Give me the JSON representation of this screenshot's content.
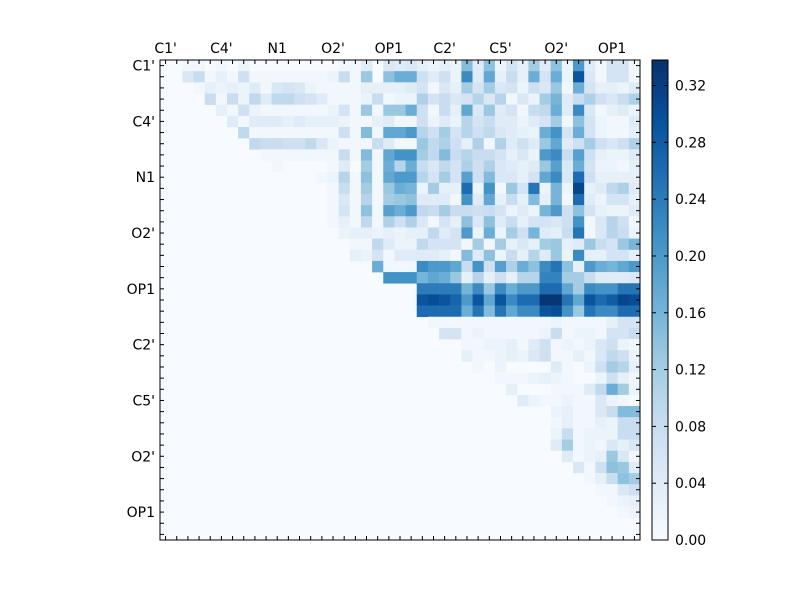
{
  "chart_data": {
    "type": "heatmap",
    "title": "",
    "xlabel": "",
    "ylabel": "",
    "n": 43,
    "x_tick_positions": [
      0,
      5,
      10,
      15,
      20,
      25,
      30,
      35,
      40
    ],
    "x_tick_labels": [
      "C1'",
      "C4'",
      "N1",
      "O2'",
      "OP1",
      "C2'",
      "C5'",
      "O2'",
      "OP1"
    ],
    "y_tick_positions": [
      0,
      5,
      10,
      15,
      20,
      25,
      30,
      35,
      40
    ],
    "y_tick_labels": [
      "C1'",
      "C4'",
      "N1",
      "O2'",
      "OP1",
      "C2'",
      "C5'",
      "O2'",
      "OP1"
    ],
    "colormap": "Blues",
    "colormap_stops": [
      "#f7fbff",
      "#deebf7",
      "#c6dbef",
      "#9ecae1",
      "#6baed6",
      "#4292c6",
      "#2171b5",
      "#08519c",
      "#08306b"
    ],
    "vmin": 0.0,
    "vmax": 0.338,
    "colorbar_ticks": [
      0.0,
      0.04,
      0.08,
      0.12,
      0.16,
      0.2,
      0.24,
      0.28,
      0.32
    ],
    "colorbar_tick_labels": [
      "0.00",
      "0.04",
      "0.08",
      "0.12",
      "0.16",
      "0.20",
      "0.24",
      "0.28",
      "0.32"
    ],
    "rows_note": "each row: values begin at column 'start'; columns outside are 0",
    "rows": [
      {
        "start": 2,
        "values": [
          0.01,
          0.01,
          0,
          0.01,
          0,
          0.02,
          0,
          0,
          0,
          0,
          0,
          0,
          0,
          0,
          0.01,
          0.01,
          0.04,
          0,
          0.05,
          0.04,
          0.05,
          0.03,
          0.02,
          0.03,
          0.02,
          0.15,
          0.04,
          0.14,
          0.02,
          0.06,
          0.03,
          0.12,
          0.04,
          0.14,
          0.02,
          0.2,
          0.04,
          0.01,
          0.06,
          0.06,
          0.01
        ]
      },
      {
        "start": 2,
        "values": [
          0.05,
          0.08,
          0.01,
          0.03,
          0.01,
          0.07,
          0.01,
          0.01,
          0.01,
          0.01,
          0.01,
          0.01,
          0.01,
          0.02,
          0.08,
          0.01,
          0.13,
          0,
          0.14,
          0.17,
          0.17,
          0.07,
          0.04,
          0.07,
          0.02,
          0.22,
          0.04,
          0.18,
          0.03,
          0.08,
          0.03,
          0.17,
          0.06,
          0.17,
          0.02,
          0.29,
          0.05,
          0.01,
          0.06,
          0.06,
          0.01
        ]
      },
      {
        "start": 3,
        "values": [
          0.01,
          0.03,
          0.02,
          0.03,
          0.02,
          0.04,
          0.01,
          0.05,
          0.06,
          0.05,
          0.02,
          0.01,
          0.01,
          0.01,
          0.01,
          0.03,
          0.03,
          0.03,
          0.03,
          0.04,
          0.06,
          0.01,
          0.05,
          0.03,
          0.12,
          0.06,
          0.12,
          0.05,
          0.06,
          0.02,
          0.07,
          0.05,
          0.13,
          0.01,
          0.17,
          0.06,
          0.03,
          0.03,
          0.02,
          0.04
        ]
      },
      {
        "start": 4,
        "values": [
          0.08,
          0.01,
          0.08,
          0.02,
          0.09,
          0.04,
          0.09,
          0.09,
          0.07,
          0.06,
          0.04,
          0.01,
          0.01,
          0.01,
          0.02,
          0.08,
          0.01,
          0.02,
          0.02,
          0.11,
          0.06,
          0.08,
          0.05,
          0.06,
          0.1,
          0.05,
          0.1,
          0.01,
          0.05,
          0.02,
          0.12,
          0.16,
          0.04,
          0.08,
          0.11,
          0.07,
          0.05,
          0.08,
          0.11
        ]
      },
      {
        "start": 5,
        "values": [
          0.03,
          0.01,
          0.07,
          0.02,
          0.01,
          0.01,
          0.01,
          0.01,
          0.01,
          0.01,
          0.02,
          0.06,
          0.01,
          0.13,
          0.01,
          0.13,
          0.13,
          0.17,
          0.07,
          0.01,
          0.08,
          0.03,
          0.18,
          0.05,
          0.13,
          0.04,
          0.06,
          0.01,
          0.08,
          0.09,
          0.17,
          0.04,
          0.22,
          0.05,
          0.01,
          0.03,
          0.04,
          0.02
        ]
      },
      {
        "start": 6,
        "values": [
          0.04,
          0.01,
          0.04,
          0.04,
          0.04,
          0.03,
          0.04,
          0.03,
          0.03,
          0.03,
          0.02,
          0.01,
          0.01,
          0.03,
          0.04,
          0.01,
          0.01,
          0.07,
          0.02,
          0.04,
          0.02,
          0.1,
          0.06,
          0.08,
          0.04,
          0.04,
          0.02,
          0.04,
          0.06,
          0.12,
          0.01,
          0.14,
          0.06,
          0.02,
          0.01,
          0.01,
          0.04
        ]
      },
      {
        "start": 7,
        "values": [
          0.09,
          0.01,
          0.01,
          0.01,
          0.01,
          0.01,
          0.01,
          0.01,
          0.01,
          0.07,
          0.01,
          0.15,
          0.01,
          0.18,
          0.18,
          0.2,
          0.1,
          0.07,
          0.12,
          0.06,
          0.1,
          0.07,
          0.09,
          0.05,
          0.04,
          0.03,
          0.02,
          0.17,
          0.21,
          0.06,
          0.17,
          0.06,
          0.02,
          0.01,
          0.01,
          0.03
        ]
      },
      {
        "start": 8,
        "values": [
          0.09,
          0.08,
          0.08,
          0.07,
          0.07,
          0.09,
          0.05,
          0.02,
          0.01,
          0.01,
          0.01,
          0.08,
          0.04,
          0.01,
          0.01,
          0.13,
          0.09,
          0.11,
          0.07,
          0.03,
          0.11,
          0.01,
          0.11,
          0.04,
          0.07,
          0.04,
          0.13,
          0.18,
          0.04,
          0.07,
          0.12,
          0.07,
          0.05,
          0.07,
          0.11
        ]
      },
      {
        "start": 9,
        "values": [
          0.01,
          0.01,
          0.01,
          0.01,
          0.01,
          0.01,
          0.01,
          0.08,
          0.01,
          0.15,
          0.01,
          0.18,
          0.21,
          0.21,
          0.12,
          0.09,
          0.15,
          0.08,
          0.1,
          0.08,
          0.08,
          0.06,
          0.03,
          0.05,
          0.02,
          0.2,
          0.22,
          0.08,
          0.19,
          0.07,
          0.03,
          0.02,
          0.02,
          0.04
        ]
      },
      {
        "start": 10,
        "values": [
          0.01,
          0,
          0,
          0,
          0,
          0.01,
          0.04,
          0,
          0.12,
          0.01,
          0.17,
          0.1,
          0.17,
          0.08,
          0.05,
          0.09,
          0.06,
          0.11,
          0.07,
          0.11,
          0.05,
          0.04,
          0.03,
          0.04,
          0.13,
          0.19,
          0.05,
          0.17,
          0.06,
          0.02,
          0.02,
          0.01,
          0.03
        ]
      },
      {
        "start": 14,
        "values": [
          0.01,
          0.02,
          0.1,
          0.01,
          0.14,
          0.01,
          0.18,
          0.2,
          0.2,
          0.1,
          0.06,
          0.12,
          0.06,
          0.19,
          0.07,
          0.15,
          0.05,
          0.05,
          0.03,
          0.06,
          0.18,
          0.22,
          0.05,
          0.26,
          0.07,
          0.03,
          0.03,
          0.03,
          0.03
        ]
      },
      {
        "start": 14,
        "values": [
          0,
          0.01,
          0.08,
          0.01,
          0.12,
          0.01,
          0.13,
          0.17,
          0.16,
          0.02,
          0.12,
          0.03,
          0.03,
          0.26,
          0.02,
          0.21,
          0.01,
          0.13,
          0.06,
          0.25,
          0.02,
          0.16,
          0.02,
          0.31,
          0.03,
          0.04,
          0.09,
          0.11,
          0.04
        ]
      },
      {
        "start": 14,
        "values": [
          0,
          0.01,
          0.05,
          0.01,
          0.1,
          0.01,
          0.12,
          0.13,
          0.14,
          0.04,
          0.04,
          0.04,
          0.01,
          0.21,
          0.04,
          0.18,
          0.03,
          0.08,
          0.03,
          0.15,
          0.03,
          0.16,
          0.01,
          0.26,
          0.04,
          0.02,
          0.06,
          0.06,
          0.03
        ]
      },
      {
        "start": 14,
        "values": [
          0,
          0.01,
          0.06,
          0.01,
          0.14,
          0.01,
          0.19,
          0.17,
          0.2,
          0.09,
          0.08,
          0.12,
          0.08,
          0.08,
          0.07,
          0.08,
          0.06,
          0.02,
          0.04,
          0.02,
          0.16,
          0.2,
          0.07,
          0.14,
          0.06,
          0.03,
          0.02,
          0.02,
          0.04
        ]
      },
      {
        "start": 14,
        "values": [
          0,
          0.01,
          0.03,
          0.01,
          0.09,
          0.01,
          0.11,
          0.07,
          0.11,
          0.05,
          0.01,
          0.06,
          0.03,
          0.14,
          0.05,
          0.14,
          0.04,
          0.08,
          0.03,
          0.06,
          0.06,
          0.05,
          0.07,
          0.21,
          0.01,
          0.05,
          0.1,
          0.07,
          0.01
        ]
      },
      {
        "start": 14,
        "values": [
          0,
          0,
          0.02,
          0.03,
          0.03,
          0.02,
          0.03,
          0.02,
          0.03,
          0.03,
          0.09,
          0.04,
          0.06,
          0.2,
          0.02,
          0.17,
          0.02,
          0.12,
          0.07,
          0.16,
          0.04,
          0.03,
          0.08,
          0.25,
          0.01,
          0.05,
          0.1,
          0.08,
          0.02
        ]
      },
      {
        "start": 14,
        "values": [
          0,
          0,
          0,
          0.01,
          0.01,
          0.09,
          0.04,
          0.02,
          0.02,
          0.09,
          0.06,
          0.06,
          0.06,
          0.01,
          0.12,
          0.01,
          0.12,
          0.03,
          0.05,
          0.03,
          0.12,
          0.13,
          0.03,
          0.04,
          0.13,
          0.08,
          0.06,
          0.13,
          0.16
        ]
      },
      {
        "start": 14,
        "values": [
          0,
          0,
          0,
          0.03,
          0.02,
          0.06,
          0.01,
          0.04,
          0.04,
          0.04,
          0.04,
          0.03,
          0.01,
          0.15,
          0.04,
          0.14,
          0.02,
          0.08,
          0.03,
          0.1,
          0.04,
          0.13,
          0.02,
          0.22,
          0.03,
          0.03,
          0.06,
          0.06,
          0.03
        ]
      },
      {
        "start": 14,
        "values": [
          0,
          0,
          0,
          0,
          0,
          0.17,
          0.01,
          0.01,
          0.01,
          0.22,
          0.2,
          0.2,
          0.18,
          0.08,
          0.21,
          0.07,
          0.19,
          0.11,
          0.17,
          0.14,
          0.22,
          0.25,
          0.14,
          0.03,
          0.2,
          0.17,
          0.16,
          0.18,
          0.2
        ]
      },
      {
        "start": 14,
        "values": [
          0,
          0,
          0,
          0,
          0,
          0,
          0.21,
          0.21,
          0.21,
          0.16,
          0.18,
          0.17,
          0.13,
          0.03,
          0.1,
          0.03,
          0.07,
          0.03,
          0.1,
          0.1,
          0.23,
          0.23,
          0.12,
          0.12,
          0.08,
          0.04,
          0.04,
          0.04,
          0.05
        ]
      },
      {
        "start": 23,
        "values": [
          0.24,
          0.24,
          0.24,
          0.24,
          0.16,
          0.22,
          0.13,
          0.22,
          0.17,
          0.2,
          0.2,
          0.26,
          0.26,
          0.18,
          0.12,
          0.22,
          0.21,
          0.21,
          0.25,
          0.25
        ]
      },
      {
        "start": 23,
        "values": [
          0.29,
          0.3,
          0.29,
          0.27,
          0.2,
          0.29,
          0.18,
          0.29,
          0.22,
          0.26,
          0.26,
          0.33,
          0.33,
          0.25,
          0.18,
          0.29,
          0.26,
          0.28,
          0.31,
          0.3
        ]
      },
      {
        "start": 23,
        "values": [
          0.26,
          0.26,
          0.26,
          0.26,
          0.17,
          0.25,
          0.15,
          0.25,
          0.18,
          0.22,
          0.22,
          0.29,
          0.3,
          0.21,
          0.13,
          0.25,
          0.22,
          0.22,
          0.26,
          0.26
        ]
      },
      {
        "start": 23,
        "values": [
          0,
          0.01,
          0.01,
          0.01,
          0.01,
          0.01,
          0.01,
          0.01,
          0.01,
          0.01,
          0.01,
          0.01,
          0.02,
          0.01,
          0.01,
          0.01,
          0.01,
          0.03,
          0.06,
          0.06
        ]
      },
      {
        "start": 23,
        "values": [
          0,
          0,
          0.06,
          0.06,
          0.01,
          0.02,
          0.01,
          0.01,
          0.01,
          0.01,
          0.01,
          0.02,
          0.08,
          0.01,
          0.02,
          0.02,
          0.01,
          0.06,
          0.06,
          0.08
        ]
      },
      {
        "start": 23,
        "values": [
          0,
          0,
          0,
          0,
          0.01,
          0.01,
          0.02,
          0.02,
          0.03,
          0.01,
          0.04,
          0.07,
          0.01,
          0.02,
          0.01,
          0.02,
          0.05,
          0.07,
          0.02,
          0.01
        ]
      },
      {
        "start": 23,
        "values": [
          0,
          0,
          0,
          0,
          0.03,
          0.01,
          0.01,
          0.02,
          0.03,
          0.02,
          0.05,
          0.07,
          0.01,
          0.01,
          0.03,
          0.01,
          0.05,
          0.09,
          0.07,
          0.02
        ]
      },
      {
        "start": 23,
        "values": [
          0,
          0,
          0,
          0,
          0,
          0.01,
          0,
          0.02,
          0,
          0,
          0,
          0,
          0.04,
          0.01,
          0,
          0.02,
          0.07,
          0.12,
          0.1,
          0.03
        ]
      },
      {
        "start": 23,
        "values": [
          0,
          0,
          0,
          0,
          0,
          0,
          0,
          0.01,
          0.01,
          0.01,
          0.02,
          0.03,
          0.02,
          0.01,
          0,
          0,
          0.02,
          0.07,
          0.03,
          0.01
        ]
      },
      {
        "start": 23,
        "values": [
          0,
          0,
          0,
          0,
          0,
          0,
          0,
          0,
          0.03,
          0,
          0,
          0,
          0.01,
          0.01,
          0.01,
          0.04,
          0.09,
          0.17,
          0.12,
          0.02
        ]
      },
      {
        "start": 23,
        "values": [
          0,
          0,
          0,
          0,
          0,
          0,
          0,
          0,
          0,
          0.04,
          0.02,
          0.01,
          0.01,
          0.02,
          0.01,
          0.01,
          0.05,
          0.02,
          0.01,
          0
        ]
      },
      {
        "start": 35,
        "values": [
          0.02,
          0.03,
          0.01,
          0.01,
          0.05,
          0.08,
          0.15,
          0.15
        ]
      },
      {
        "start": 35,
        "values": [
          0.01,
          0.03,
          0.01,
          0.01,
          0.03,
          0.02,
          0.08,
          0.08
        ]
      },
      {
        "start": 35,
        "values": [
          0.02,
          0.08,
          0.01,
          0.02,
          0.02,
          0.02,
          0.08,
          0.08
        ]
      },
      {
        "start": 35,
        "values": [
          0.04,
          0.12,
          0.01,
          0.02,
          0.01,
          0.05,
          0.03,
          0.05
        ]
      },
      {
        "start": 36,
        "values": [
          0.04,
          0.01,
          0.02,
          0.03,
          0.13,
          0.05,
          0.01
        ]
      },
      {
        "start": 37,
        "values": [
          0.05,
          0.01,
          0.07,
          0.14,
          0.13,
          0.04
        ]
      },
      {
        "start": 38,
        "values": [
          0.01,
          0.03,
          0.08,
          0.14,
          0.12
        ]
      },
      {
        "start": 39,
        "values": [
          0.01,
          0.01,
          0.05,
          0.07
        ]
      },
      {
        "start": 40,
        "values": [
          0.01,
          0.02,
          0.03
        ]
      },
      {
        "start": 41,
        "values": [
          0.01,
          0.02
        ]
      },
      {
        "start": 42,
        "values": [
          0
        ]
      },
      {
        "start": 42,
        "values": [
          0
        ]
      }
    ]
  }
}
